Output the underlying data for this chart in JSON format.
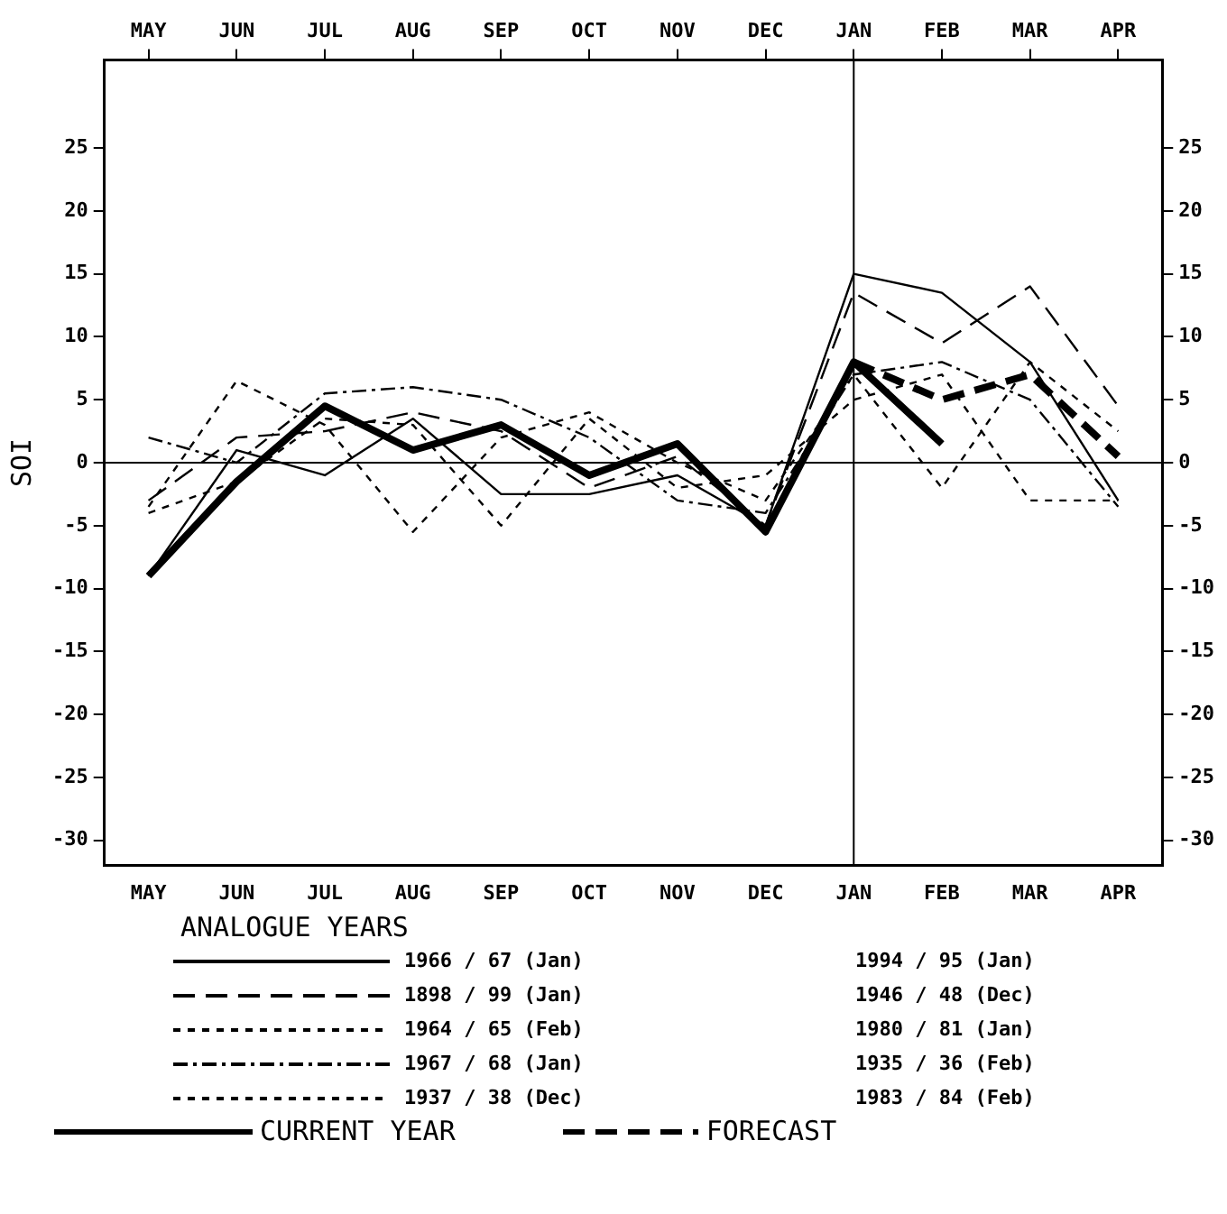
{
  "chart_data": {
    "type": "line",
    "ylabel": "SOI",
    "legend_title": "ANALOGUE YEARS",
    "categories": [
      "MAY",
      "JUN",
      "JUL",
      "AUG",
      "SEP",
      "OCT",
      "NOV",
      "DEC",
      "JAN",
      "FEB",
      "MAR",
      "APR"
    ],
    "ylim": [
      -32,
      32
    ],
    "yticks": [
      -30,
      -25,
      -20,
      -15,
      -10,
      -5,
      0,
      5,
      10,
      15,
      20,
      25
    ],
    "y2lim": [
      -32,
      32
    ],
    "y2ticks": [
      -30,
      -25,
      -20,
      -15,
      -10,
      -5,
      0,
      5,
      10,
      15,
      20,
      25
    ],
    "grid": false,
    "legend": "bottom",
    "marker": "none",
    "ref_lines": [
      {
        "axis": "x",
        "value": "JAN",
        "color": "#000000"
      },
      {
        "axis": "y",
        "value": 0,
        "color": "#000000"
      }
    ],
    "annotations": [
      "1994 / 95 (Jan)",
      "1946 / 48 (Dec)",
      "1980 / 81 (Jan)",
      "1935 / 36 (Feb)",
      "1983 / 84 (Feb)"
    ],
    "series": [
      {
        "name": "1966 / 67 (Jan)",
        "color": "#000000",
        "line_style": "solid",
        "values": [
          -9,
          1,
          -1,
          3.5,
          -2.5,
          -2.5,
          -1,
          -5,
          15,
          13.5,
          8,
          -3
        ]
      },
      {
        "name": "1898 / 99 (Jan)",
        "color": "#000000",
        "line_style": "dashed",
        "values": [
          -3,
          2,
          2.5,
          4,
          2.5,
          -2,
          0.5,
          -5,
          13.5,
          9.5,
          14,
          4.5
        ]
      },
      {
        "name": "1964 / 65 (Feb)",
        "color": "#000000",
        "line_style": "dotted",
        "values": [
          -3.5,
          6.5,
          3,
          -5.5,
          2,
          4,
          0,
          -3,
          7,
          -2,
          8,
          2.5
        ]
      },
      {
        "name": "1967 / 68 (Jan)",
        "color": "#000000",
        "line_style": "dashdot",
        "values": [
          2,
          0,
          5.5,
          6,
          5,
          2,
          -3,
          -4,
          7,
          8,
          5,
          -3.5
        ]
      },
      {
        "name": "1937 / 38 (Dec)",
        "color": "#000000",
        "line_style": "dotted",
        "values": [
          -4,
          -1.5,
          3.5,
          3,
          -5,
          3.5,
          -2,
          -1,
          5,
          7,
          -3,
          -3
        ]
      },
      {
        "name": "CURRENT YEAR",
        "color": "#000000",
        "line_style": "solid",
        "values": [
          -9,
          -1.5,
          4.5,
          1,
          3,
          -1,
          1.5,
          -5.5,
          8,
          1.5,
          null,
          null
        ]
      },
      {
        "name": "FORECAST",
        "color": "#000000",
        "line_style": "dashed",
        "values": [
          null,
          null,
          null,
          null,
          null,
          null,
          null,
          null,
          8,
          5,
          7,
          0.5
        ]
      }
    ]
  }
}
